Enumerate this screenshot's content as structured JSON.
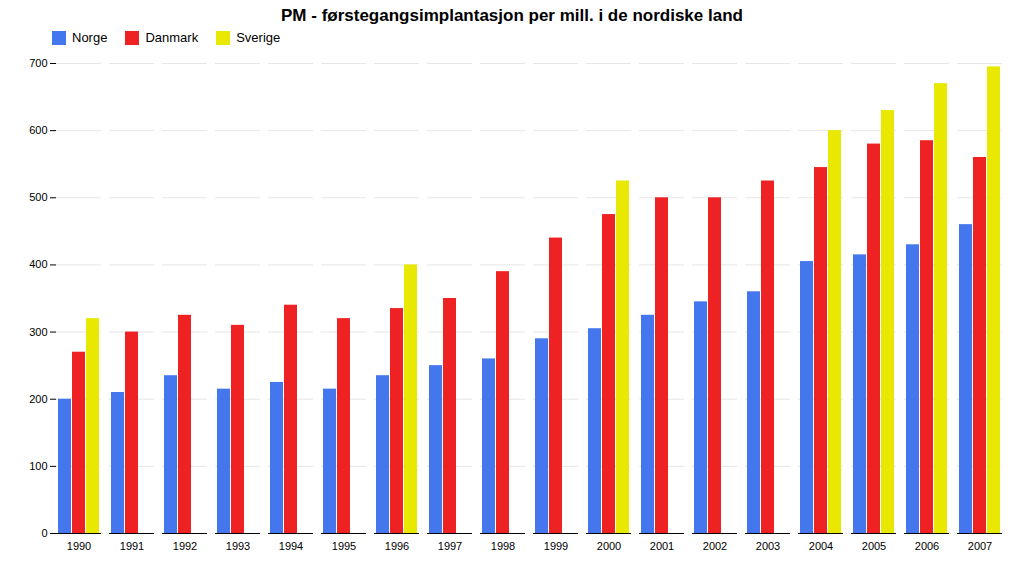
{
  "chart_data": {
    "type": "bar",
    "title": "PM - førstegangsimplantasjon per mill. i de nordiske land",
    "categories": [
      "1990",
      "1991",
      "1992",
      "1993",
      "1994",
      "1995",
      "1996",
      "1997",
      "1998",
      "1999",
      "2000",
      "2001",
      "2002",
      "2003",
      "2004",
      "2005",
      "2006",
      "2007"
    ],
    "series": [
      {
        "name": "Norge",
        "color": "#4477ee",
        "values": [
          200,
          210,
          235,
          215,
          225,
          215,
          235,
          250,
          260,
          290,
          305,
          325,
          345,
          360,
          405,
          415,
          430,
          460
        ]
      },
      {
        "name": "Danmark",
        "color": "#ee2222",
        "values": [
          270,
          300,
          325,
          310,
          340,
          320,
          335,
          350,
          390,
          440,
          475,
          500,
          500,
          525,
          545,
          580,
          585,
          560
        ]
      },
      {
        "name": "Sverige",
        "color": "#e8e800",
        "values": [
          320,
          null,
          null,
          null,
          null,
          null,
          400,
          null,
          null,
          null,
          525,
          null,
          null,
          null,
          600,
          630,
          670,
          695
        ]
      }
    ],
    "ylim": [
      0,
      700
    ],
    "yticks": [
      0,
      100,
      200,
      300,
      400,
      500,
      600,
      700
    ],
    "grid": true,
    "legend": "upper left"
  }
}
